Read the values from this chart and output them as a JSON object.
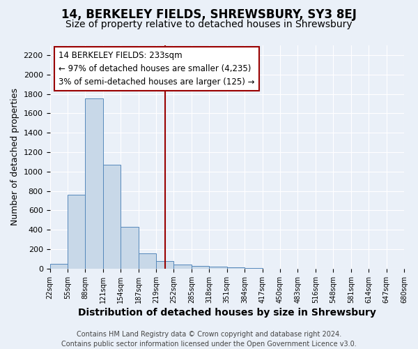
{
  "title": "14, BERKELEY FIELDS, SHREWSBURY, SY3 8EJ",
  "subtitle": "Size of property relative to detached houses in Shrewsbury",
  "xlabel": "Distribution of detached houses by size in Shrewsbury",
  "ylabel": "Number of detached properties",
  "footer_lines": [
    "Contains HM Land Registry data © Crown copyright and database right 2024.",
    "Contains public sector information licensed under the Open Government Licence v3.0."
  ],
  "bin_labels": [
    "22sqm",
    "55sqm",
    "88sqm",
    "121sqm",
    "154sqm",
    "187sqm",
    "219sqm",
    "252sqm",
    "285sqm",
    "318sqm",
    "351sqm",
    "384sqm",
    "417sqm",
    "450sqm",
    "483sqm",
    "516sqm",
    "548sqm",
    "581sqm",
    "614sqm",
    "647sqm",
    "680sqm"
  ],
  "bar_values": [
    50,
    760,
    1750,
    1070,
    430,
    155,
    80,
    40,
    25,
    20,
    15,
    5,
    0,
    0,
    0,
    0,
    0,
    0,
    0,
    0
  ],
  "bar_color": "#c8d8e8",
  "bar_edge_color": "#5588bb",
  "property_line_x": 6.5,
  "vline_color": "#990000",
  "annotation_line1": "14 BERKELEY FIELDS: 233sqm",
  "annotation_line2": "← 97% of detached houses are smaller (4,235)",
  "annotation_line3": "3% of semi-detached houses are larger (125) →",
  "ylim": [
    0,
    2300
  ],
  "yticks": [
    0,
    200,
    400,
    600,
    800,
    1000,
    1200,
    1400,
    1600,
    1800,
    2000,
    2200
  ],
  "background_color": "#eaf0f8",
  "grid_color": "#ffffff",
  "title_fontsize": 12,
  "subtitle_fontsize": 10,
  "xlabel_fontsize": 10,
  "ylabel_fontsize": 9,
  "tick_fontsize": 8,
  "footer_fontsize": 7,
  "annotation_fontsize": 8.5
}
